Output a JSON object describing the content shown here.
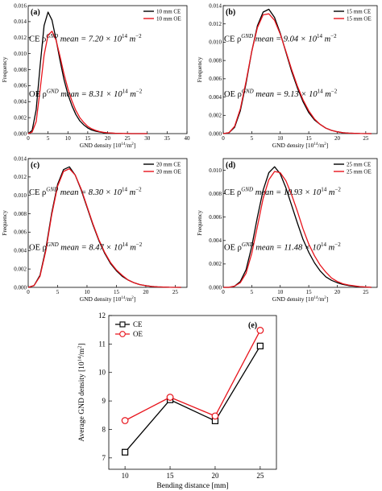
{
  "chart_data": [
    {
      "panel": "(a)",
      "type": "line",
      "xlabel": "GND density [10",
      "xlabel_sup": "14",
      "xlabel_tail": "/m",
      "xlabel_sup2": "2",
      "xlabel_end": "]",
      "ylabel": "Frequency",
      "xlim": [
        0,
        40
      ],
      "ylim": [
        0,
        0.016
      ],
      "xticks": [
        0,
        5,
        10,
        15,
        20,
        25,
        30,
        35,
        40
      ],
      "yticks": [
        "0.000",
        "0.002",
        "0.004",
        "0.006",
        "0.008",
        "0.010",
        "0.012",
        "0.014",
        "0.016"
      ],
      "ann_ce": {
        "pre": "CE ρ",
        "sup": "GND",
        "mid": " mean = 7.20 × 10",
        "sup2": "14",
        "unit": " m",
        "sup3": "−2"
      },
      "ann_oe": {
        "pre": "OE ρ",
        "sup": "GND",
        "mid": " mean = 8.31 × 10",
        "sup2": "14",
        "unit": " m",
        "sup3": "−2"
      },
      "series": [
        {
          "name": "10 mm CE",
          "color": "#000000",
          "x": [
            0,
            1,
            2,
            3,
            4,
            5,
            6,
            7,
            8,
            9,
            10,
            11,
            12,
            13,
            14,
            15,
            16,
            17,
            18,
            19,
            20,
            22,
            24,
            26,
            28,
            30
          ],
          "y": [
            0,
            0.0004,
            0.003,
            0.0085,
            0.0135,
            0.0152,
            0.0142,
            0.0118,
            0.0092,
            0.0068,
            0.0049,
            0.0035,
            0.0024,
            0.0016,
            0.0011,
            0.0007,
            0.00045,
            0.0003,
            0.0002,
            0.00012,
            8e-05,
            3e-05,
            1e-05,
            0,
            0,
            0
          ]
        },
        {
          "name": "10 mm OE",
          "color": "#e8141c",
          "x": [
            0,
            1,
            2,
            3,
            4,
            5,
            6,
            7,
            8,
            9,
            10,
            11,
            12,
            13,
            14,
            15,
            16,
            17,
            18,
            19,
            20,
            22,
            24,
            26,
            28,
            30
          ],
          "y": [
            0,
            0.0002,
            0.0015,
            0.0055,
            0.0098,
            0.0123,
            0.0128,
            0.0117,
            0.0097,
            0.0075,
            0.0056,
            0.0041,
            0.0029,
            0.002,
            0.0014,
            0.0009,
            0.0006,
            0.0004,
            0.00025,
            0.00016,
            0.0001,
            4e-05,
            1e-05,
            0,
            0,
            0
          ]
        }
      ]
    },
    {
      "panel": "(b)",
      "type": "line",
      "xlabel": "GND density [10",
      "xlabel_sup": "14",
      "xlabel_tail": "/m",
      "xlabel_sup2": "2",
      "xlabel_end": "]",
      "ylabel": "Frequency",
      "xlim": [
        0,
        27
      ],
      "ylim": [
        0,
        0.014
      ],
      "xticks": [
        0,
        5,
        10,
        15,
        20,
        25
      ],
      "yticks": [
        "0.000",
        "0.002",
        "0.004",
        "0.006",
        "0.008",
        "0.010",
        "0.012",
        "0.014"
      ],
      "ann_ce": {
        "pre": "CE ρ",
        "sup": "GND",
        "mid": " mean = 9.04 × 10",
        "sup2": "14",
        "unit": " m",
        "sup3": "−2"
      },
      "ann_oe": {
        "pre": "OE ρ",
        "sup": "GND",
        "mid": " mean = 9.13 × 10",
        "sup2": "14",
        "unit": " m",
        "sup3": "−2"
      },
      "series": [
        {
          "name": "15 mm CE",
          "color": "#000000",
          "x": [
            0,
            1,
            2,
            3,
            4,
            5,
            6,
            7,
            8,
            9,
            10,
            11,
            12,
            13,
            14,
            15,
            16,
            17,
            18,
            19,
            20,
            21,
            22,
            24,
            26
          ],
          "y": [
            0,
            0.0001,
            0.0007,
            0.0025,
            0.0055,
            0.009,
            0.0118,
            0.0133,
            0.0136,
            0.0127,
            0.011,
            0.0089,
            0.0068,
            0.005,
            0.0035,
            0.0023,
            0.0015,
            0.001,
            0.0006,
            0.00035,
            0.0002,
            0.0001,
            5e-05,
            1e-05,
            0
          ]
        },
        {
          "name": "15 mm OE",
          "color": "#e8141c",
          "x": [
            0,
            1,
            2,
            3,
            4,
            5,
            6,
            7,
            8,
            9,
            10,
            11,
            12,
            13,
            14,
            15,
            16,
            17,
            18,
            19,
            20,
            21,
            22,
            24,
            26
          ],
          "y": [
            0,
            0.0001,
            0.0008,
            0.0027,
            0.0057,
            0.009,
            0.0116,
            0.013,
            0.0131,
            0.0124,
            0.0109,
            0.009,
            0.007,
            0.0052,
            0.0037,
            0.0025,
            0.0016,
            0.001,
            0.0006,
            0.00035,
            0.0002,
            0.0001,
            5e-05,
            1e-05,
            0
          ]
        }
      ]
    },
    {
      "panel": "(c)",
      "type": "line",
      "xlabel": "GND density [10",
      "xlabel_sup": "14",
      "xlabel_tail": "/m",
      "xlabel_sup2": "2",
      "xlabel_end": "]",
      "ylabel": "Frequency",
      "xlim": [
        0,
        27
      ],
      "ylim": [
        0,
        0.014
      ],
      "xticks": [
        0,
        5,
        10,
        15,
        20,
        25
      ],
      "yticks": [
        "0.000",
        "0.002",
        "0.004",
        "0.006",
        "0.008",
        "0.010",
        "0.012",
        "0.014"
      ],
      "ann_ce": {
        "pre": "CE ρ",
        "sup": "GND",
        "mid": " mean = 8.30 × 10",
        "sup2": "14",
        "unit": " m",
        "sup3": "−2"
      },
      "ann_oe": {
        "pre": "OE ρ",
        "sup": "GND",
        "mid": " mean = 8.47 × 10",
        "sup2": "14",
        "unit": " m",
        "sup3": "−2"
      },
      "series": [
        {
          "name": "20 mm CE",
          "color": "#000000",
          "x": [
            0,
            1,
            2,
            3,
            4,
            5,
            6,
            7,
            8,
            9,
            10,
            11,
            12,
            13,
            14,
            15,
            16,
            17,
            18,
            19,
            20,
            21,
            22,
            24,
            26
          ],
          "y": [
            0,
            0.0002,
            0.0013,
            0.0042,
            0.0081,
            0.0112,
            0.0128,
            0.0131,
            0.0122,
            0.0106,
            0.0087,
            0.0068,
            0.0051,
            0.0037,
            0.0026,
            0.0018,
            0.0012,
            0.0008,
            0.0005,
            0.0003,
            0.00018,
            0.0001,
            5e-05,
            1e-05,
            0
          ]
        },
        {
          "name": "20 mm OE",
          "color": "#e8141c",
          "x": [
            0,
            1,
            2,
            3,
            4,
            5,
            6,
            7,
            8,
            9,
            10,
            11,
            12,
            13,
            14,
            15,
            16,
            17,
            18,
            19,
            20,
            21,
            22,
            24,
            26
          ],
          "y": [
            0,
            0.0002,
            0.0012,
            0.004,
            0.0079,
            0.011,
            0.0126,
            0.0129,
            0.0122,
            0.0107,
            0.0088,
            0.0069,
            0.0052,
            0.0038,
            0.0027,
            0.0019,
            0.0013,
            0.0008,
            0.0005,
            0.0003,
            0.00018,
            0.0001,
            5e-05,
            1e-05,
            0
          ]
        }
      ]
    },
    {
      "panel": "(d)",
      "type": "line",
      "xlabel": "GND density [10",
      "xlabel_sup": "14",
      "xlabel_tail": "/m",
      "xlabel_sup2": "2",
      "xlabel_end": "]",
      "ylabel": "Frequency",
      "xlim": [
        0,
        27
      ],
      "ylim": [
        0,
        0.011
      ],
      "xticks": [
        0,
        5,
        10,
        15,
        20,
        25
      ],
      "yticks": [
        "0.000",
        "0.002",
        "0.004",
        "0.006",
        "0.008",
        "0.010"
      ],
      "ann_ce": {
        "pre": "CE ρ",
        "sup": "GND",
        "mid": " mean = 10.93 × 10",
        "sup2": "14",
        "unit": " m",
        "sup3": "−2"
      },
      "ann_oe": {
        "pre": "OE ρ",
        "sup": "GND",
        "mid": " mean = 11.48 × 10",
        "sup2": "14",
        "unit": " m",
        "sup3": "−2"
      },
      "series": [
        {
          "name": "25 mm CE",
          "color": "#000000",
          "x": [
            0,
            1,
            2,
            3,
            4,
            5,
            6,
            7,
            8,
            9,
            10,
            11,
            12,
            13,
            14,
            15,
            16,
            17,
            18,
            19,
            20,
            21,
            22,
            24,
            26
          ],
          "y": [
            0,
            0,
            0.0001,
            0.0005,
            0.0015,
            0.0035,
            0.006,
            0.0083,
            0.0098,
            0.0103,
            0.0097,
            0.0085,
            0.007,
            0.0055,
            0.0041,
            0.003,
            0.0021,
            0.0014,
            0.0009,
            0.0006,
            0.0004,
            0.00025,
            0.00015,
            5e-05,
            0
          ]
        },
        {
          "name": "25 mm OE",
          "color": "#e8141c",
          "x": [
            0,
            1,
            2,
            3,
            4,
            5,
            6,
            7,
            8,
            9,
            10,
            11,
            12,
            13,
            14,
            15,
            16,
            17,
            18,
            19,
            20,
            21,
            22,
            24,
            26
          ],
          "y": [
            0,
            0,
            0.0001,
            0.0004,
            0.0012,
            0.0029,
            0.0052,
            0.0076,
            0.0092,
            0.0099,
            0.0098,
            0.0091,
            0.0079,
            0.0065,
            0.005,
            0.0037,
            0.0027,
            0.0019,
            0.0013,
            0.0008,
            0.0005,
            0.0003,
            0.0002,
            6e-05,
            0
          ]
        }
      ]
    },
    {
      "panel": "(e)",
      "type": "line",
      "xlabel": "Bending distance [mm]",
      "ylabel": "Average GND density [10",
      "ylabel_sup": "14",
      "ylabel_tail": "/m",
      "ylabel_sup2": "2",
      "ylabel_end": "]",
      "xlim": [
        8.2,
        26.8
      ],
      "ylim": [
        6.6,
        12
      ],
      "xticks": [
        10,
        15,
        20,
        25
      ],
      "yticks": [
        7,
        8,
        9,
        10,
        11,
        12
      ],
      "categories": [
        10,
        15,
        20,
        25
      ],
      "series": [
        {
          "name": "CE",
          "color": "#000000",
          "marker": "square",
          "values": [
            7.2,
            9.04,
            8.3,
            10.93
          ]
        },
        {
          "name": "OE",
          "color": "#e8141c",
          "marker": "circle",
          "values": [
            8.31,
            9.13,
            8.47,
            11.48
          ]
        }
      ]
    }
  ]
}
